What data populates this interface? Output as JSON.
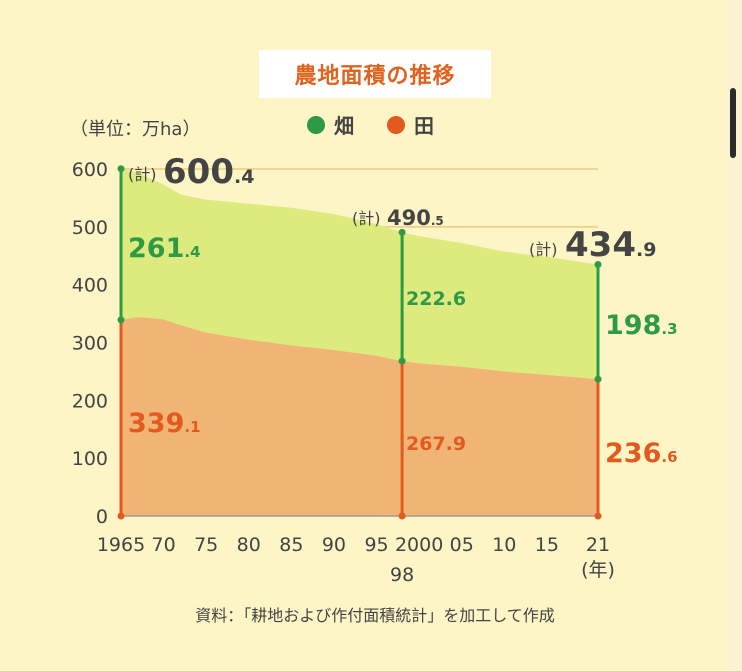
{
  "chart_data": {
    "type": "area",
    "title": "農地面積の推移",
    "unit_label": "（単位：万ha）",
    "year_label": "(年)",
    "source": "資料：「耕地および作付面積統計」を加工して作成",
    "ylim": [
      0,
      600
    ],
    "y_ticks": [
      0,
      100,
      200,
      300,
      400,
      500,
      600
    ],
    "xlim": [
      1965,
      2021
    ],
    "x_ticks": [
      {
        "year": 1965,
        "label": "1965"
      },
      {
        "year": 1970,
        "label": "70"
      },
      {
        "year": 1975,
        "label": "75"
      },
      {
        "year": 1980,
        "label": "80"
      },
      {
        "year": 1985,
        "label": "85"
      },
      {
        "year": 1990,
        "label": "90"
      },
      {
        "year": 1995,
        "label": "95"
      },
      {
        "year": 2000,
        "label": "2000"
      },
      {
        "year": 2005,
        "label": "05"
      },
      {
        "year": 2010,
        "label": "10"
      },
      {
        "year": 2015,
        "label": "15"
      },
      {
        "year": 2021,
        "label": "21"
      }
    ],
    "extra_x_label": {
      "year": 1998,
      "label": "98"
    },
    "legend": [
      {
        "name": "畑",
        "color": "#2e9a46"
      },
      {
        "name": "田",
        "color": "#e35a1f"
      }
    ],
    "colors": {
      "field_area": "#dcea7e",
      "paddy_area": "#f0b574",
      "field_text": "#2e9a46",
      "paddy_text": "#e35a1f",
      "grid": "#efc97a",
      "axis_text": "#444444"
    },
    "series": [
      {
        "name": "田",
        "x": [
          1965,
          1967,
          1970,
          1972,
          1975,
          1980,
          1985,
          1990,
          1995,
          1998,
          2000,
          2005,
          2010,
          2015,
          2021
        ],
        "values": [
          339.1,
          344,
          340,
          330,
          317,
          305,
          295,
          287,
          277,
          267.9,
          264,
          258,
          250,
          244,
          236.6
        ]
      },
      {
        "name": "畑",
        "x": [
          1965,
          1967,
          1970,
          1972,
          1975,
          1980,
          1985,
          1990,
          1995,
          1998,
          2000,
          2005,
          2010,
          2015,
          2021
        ],
        "values": [
          261.4,
          249,
          233,
          226,
          230,
          235,
          238,
          235,
          228,
          222.6,
          220,
          214,
          207,
          204,
          198.3
        ]
      }
    ],
    "annotations": [
      {
        "year": 1965,
        "kei": "(計)",
        "total_int": "600",
        "total_dec": ".4",
        "field_int": "261",
        "field_dec": ".4",
        "paddy_int": "339",
        "paddy_dec": ".1"
      },
      {
        "year": 1998,
        "kei": "(計)",
        "total_int": "490",
        "total_dec": ".5",
        "field_int": "222.6",
        "field_dec": "",
        "paddy_int": "267.9",
        "paddy_dec": ""
      },
      {
        "year": 2021,
        "kei": "(計)",
        "total_int": "434",
        "total_dec": ".9",
        "field_int": "198",
        "field_dec": ".3",
        "paddy_int": "236",
        "paddy_dec": ".6"
      }
    ]
  }
}
